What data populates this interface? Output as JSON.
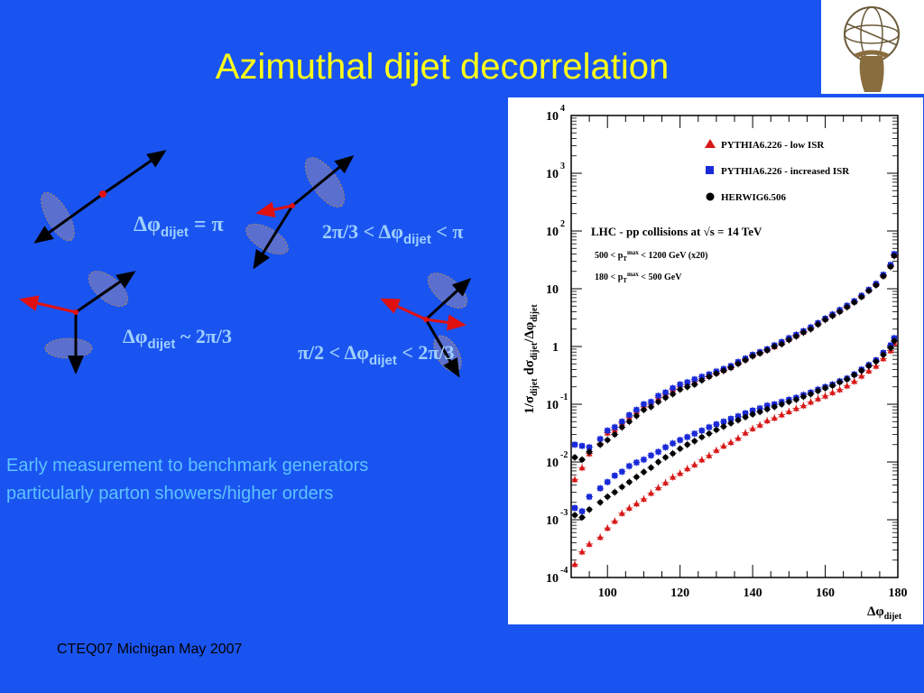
{
  "slide": {
    "title": "Azimuthal dijet decorrelation",
    "body_lines": [
      "Early measurement to benchmark generators",
      "particularly parton showers/higher orders"
    ],
    "footer": "CTEQ07 Michigan May 2007"
  },
  "sketch_labels": {
    "l1": {
      "main": "Δφ",
      "sub": "dijet",
      "rest": " = π"
    },
    "l2": {
      "pre": "2π/3 < Δφ",
      "sub": "dijet",
      "rest": " < π"
    },
    "l3": {
      "main": "Δφ",
      "sub": "dijet",
      "rest": " ~ 2π/3"
    },
    "l4": {
      "pre": "π/2 < Δφ",
      "sub": "dijet",
      "rest": " < 2π/3"
    }
  },
  "colors": {
    "background": "#1a54f0",
    "title": "#ffff1a",
    "body_text": "#5dc3ff",
    "low_isr": "#d81818",
    "increased_isr": "#1a2ad8",
    "herwig": "#000000"
  },
  "chart_data": {
    "type": "scatter",
    "y_scale": "log",
    "xlim": [
      90,
      180
    ],
    "ylim": [
      0.0001,
      10000
    ],
    "x_ticks": [
      100,
      120,
      140,
      160,
      180
    ],
    "y_ticks": [
      {
        "base": "10",
        "exp": "-4"
      },
      {
        "base": "10",
        "exp": "-3"
      },
      {
        "base": "10",
        "exp": "-2"
      },
      {
        "base": "10",
        "exp": "-1"
      },
      {
        "base": "1",
        "exp": ""
      },
      {
        "base": "10",
        "exp": ""
      },
      {
        "base": "10",
        "exp": "2"
      },
      {
        "base": "10",
        "exp": "3"
      },
      {
        "base": "10",
        "exp": "4"
      }
    ],
    "xlabel": {
      "main": "Δφ",
      "sub": "dijet"
    },
    "ylabel": "1/σdijet dσdijet/Δφdijet",
    "legend": [
      {
        "label": "PYTHIA6.226 - low ISR",
        "marker": "triangle"
      },
      {
        "label": "PYTHIA6.226 - increased ISR",
        "marker": "square"
      },
      {
        "label": "HERWIG6.506",
        "marker": "circle"
      }
    ],
    "annotations": {
      "line1": "LHC - pp collisions at √s = 14 TeV",
      "line2": "500 < pTmax < 1200 GeV (x20)",
      "line3": "180 < pTmax < 500 GeV"
    },
    "x": [
      91,
      93,
      95,
      98,
      100,
      102,
      104,
      106,
      108,
      110,
      112,
      114,
      116,
      118,
      120,
      122,
      124,
      126,
      128,
      130,
      132,
      134,
      136,
      138,
      140,
      142,
      144,
      146,
      148,
      150,
      152,
      154,
      156,
      158,
      160,
      162,
      164,
      166,
      168,
      170,
      172,
      174,
      176,
      178,
      179
    ],
    "series": [
      {
        "name": "PYTHIA6.226 - low ISR",
        "group": "500 < pTmax < 1200 GeV (x20)",
        "values": [
          0.005,
          0.008,
          0.014,
          0.021,
          0.032,
          0.036,
          0.047,
          0.06,
          0.075,
          0.09,
          0.1,
          0.13,
          0.15,
          0.18,
          0.2,
          0.22,
          0.25,
          0.28,
          0.31,
          0.35,
          0.39,
          0.44,
          0.52,
          0.6,
          0.7,
          0.78,
          0.88,
          1.0,
          1.15,
          1.35,
          1.55,
          1.8,
          2.1,
          2.5,
          3.0,
          3.5,
          4.2,
          5.0,
          6.0,
          7.5,
          9.5,
          12,
          17,
          25,
          38
        ]
      },
      {
        "name": "PYTHIA6.226 - increased ISR",
        "group": "500 < pTmax < 1200 GeV (x20)",
        "values": [
          0.02,
          0.019,
          0.018,
          0.025,
          0.035,
          0.04,
          0.05,
          0.065,
          0.08,
          0.1,
          0.11,
          0.14,
          0.16,
          0.19,
          0.22,
          0.24,
          0.27,
          0.3,
          0.33,
          0.37,
          0.41,
          0.46,
          0.54,
          0.62,
          0.72,
          0.8,
          0.9,
          1.05,
          1.2,
          1.4,
          1.6,
          1.85,
          2.15,
          2.55,
          3.05,
          3.6,
          4.3,
          5.1,
          6.1,
          7.6,
          9.6,
          12.2,
          17.5,
          26,
          40
        ]
      },
      {
        "name": "HERWIG6.506",
        "group": "500 < pTmax < 1200 GeV (x20)",
        "values": [
          0.012,
          0.011,
          0.015,
          0.02,
          0.024,
          0.03,
          0.04,
          0.05,
          0.063,
          0.08,
          0.09,
          0.11,
          0.13,
          0.15,
          0.18,
          0.2,
          0.22,
          0.26,
          0.3,
          0.34,
          0.38,
          0.43,
          0.5,
          0.58,
          0.68,
          0.76,
          0.86,
          1.0,
          1.1,
          1.3,
          1.5,
          1.75,
          2.0,
          2.4,
          2.9,
          3.4,
          4.0,
          4.8,
          5.8,
          7.2,
          9.2,
          11.5,
          16.5,
          24,
          37
        ]
      },
      {
        "name": "PYTHIA6.226 - low ISR",
        "group": "180 < pTmax < 500 GeV",
        "values": [
          0.00017,
          0.00028,
          0.00038,
          0.0005,
          0.00072,
          0.00095,
          0.0013,
          0.0016,
          0.0019,
          0.0023,
          0.0029,
          0.0036,
          0.0044,
          0.0055,
          0.0064,
          0.0077,
          0.009,
          0.011,
          0.013,
          0.016,
          0.019,
          0.022,
          0.026,
          0.032,
          0.038,
          0.044,
          0.052,
          0.058,
          0.066,
          0.075,
          0.085,
          0.095,
          0.11,
          0.125,
          0.14,
          0.16,
          0.18,
          0.21,
          0.25,
          0.31,
          0.38,
          0.46,
          0.62,
          0.85,
          1.15
        ]
      },
      {
        "name": "PYTHIA6.226 - increased ISR",
        "group": "180 < pTmax < 500 GeV",
        "values": [
          0.0016,
          0.0014,
          0.0025,
          0.0035,
          0.0045,
          0.0058,
          0.0068,
          0.0085,
          0.0098,
          0.011,
          0.013,
          0.015,
          0.018,
          0.021,
          0.024,
          0.027,
          0.031,
          0.035,
          0.04,
          0.045,
          0.05,
          0.056,
          0.062,
          0.07,
          0.078,
          0.085,
          0.095,
          0.1,
          0.11,
          0.12,
          0.13,
          0.145,
          0.16,
          0.18,
          0.2,
          0.22,
          0.25,
          0.28,
          0.33,
          0.4,
          0.48,
          0.58,
          0.78,
          1.05,
          1.4
        ]
      },
      {
        "name": "HERWIG6.506",
        "group": "180 < pTmax < 500 GeV",
        "values": [
          0.0012,
          0.0011,
          0.0015,
          0.002,
          0.0025,
          0.003,
          0.0037,
          0.0045,
          0.0055,
          0.0067,
          0.008,
          0.01,
          0.012,
          0.014,
          0.017,
          0.02,
          0.023,
          0.027,
          0.031,
          0.036,
          0.041,
          0.047,
          0.053,
          0.06,
          0.067,
          0.074,
          0.082,
          0.09,
          0.1,
          0.11,
          0.12,
          0.135,
          0.15,
          0.17,
          0.19,
          0.21,
          0.24,
          0.27,
          0.32,
          0.38,
          0.46,
          0.55,
          0.72,
          0.95,
          1.25
        ]
      }
    ]
  }
}
